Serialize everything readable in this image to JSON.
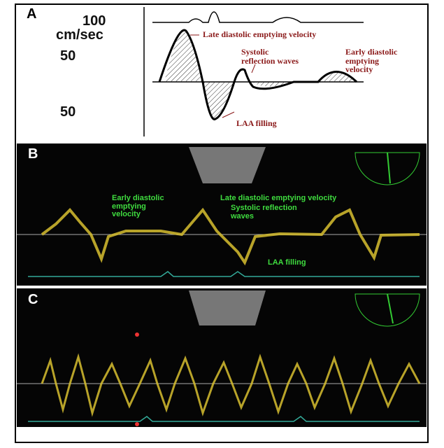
{
  "panels": [
    {
      "label": "A",
      "axis_labels": [
        "100",
        "cm/sec",
        "50",
        "50"
      ],
      "annotations": [
        "Late diastolic emptying velocity",
        "Systolic reflection waves",
        "Early diastolic emptying velocity",
        "LAA filling"
      ]
    },
    {
      "label": "B",
      "annotations": [
        "Early diastolic emptying velocity",
        "Late diastolic emptying velocity",
        "Systolic reflection waves",
        "LAA filling"
      ]
    },
    {
      "label": "C"
    }
  ]
}
